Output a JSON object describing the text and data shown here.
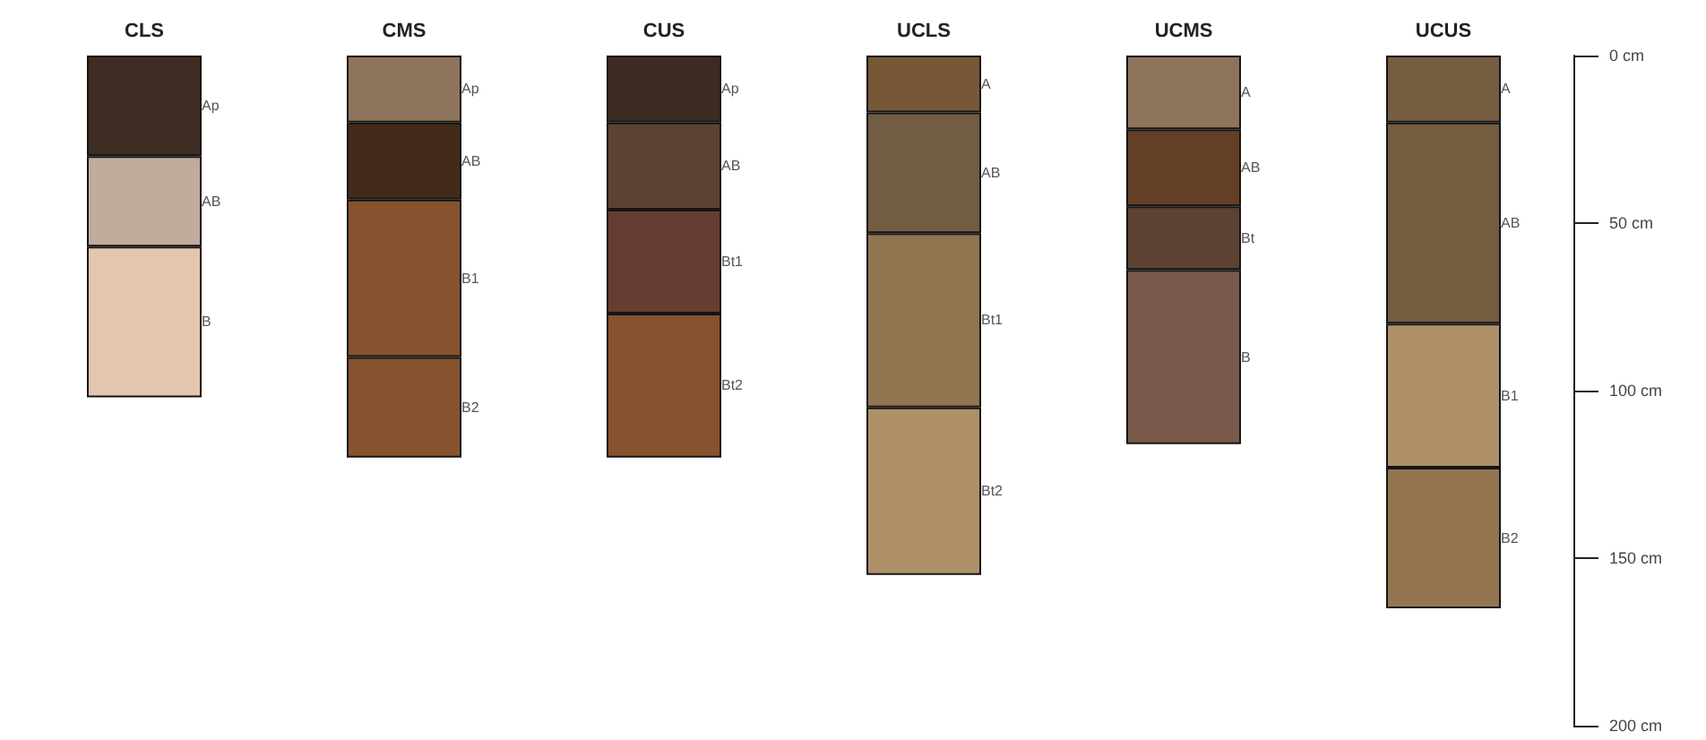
{
  "chart_data": {
    "type": "bar",
    "stacked": true,
    "categories": [
      "CLS",
      "CMS",
      "CUS",
      "UCLS",
      "UCMS",
      "UCUS"
    ],
    "series": [
      {
        "values": [
          30,
          20,
          20,
          17,
          22,
          20
        ],
        "colors": [
          "#3e2d22",
          "#8e745c",
          "#3d2c21",
          "#775836",
          "#8f745c",
          "#755d41"
        ],
        "value_labels": [
          "Ap",
          "Ap",
          "Ap",
          "A",
          "A",
          "A"
        ]
      },
      {
        "values": [
          27,
          23,
          26,
          36,
          23,
          60
        ],
        "colors": [
          "#c2aa9c",
          "#432a1b",
          "#5c4331",
          "#725c42",
          "#623f25",
          "#735c40"
        ],
        "value_labels": [
          "AB",
          "AB",
          "AB",
          "AB",
          "AB",
          "AB"
        ]
      },
      {
        "values": [
          45,
          47,
          31,
          52,
          19,
          43
        ],
        "colors": [
          "#e4c5ae",
          "#86532e",
          "#673c31",
          "#917450",
          "#5c4331",
          "#af9169"
        ],
        "value_labels": [
          "B",
          "B1",
          "Bt1",
          "Bt1",
          "Bt",
          "B1"
        ]
      },
      {
        "values": [
          null,
          30,
          43,
          50,
          52,
          42
        ],
        "colors": [
          null,
          "#86532e",
          "#86532e",
          "#ae9168",
          "#795a4a",
          "#937550"
        ],
        "value_labels": [
          null,
          "B2",
          "Bt2",
          "Bt2",
          "B",
          "B2"
        ]
      }
    ],
    "ylim": [
      200,
      0
    ],
    "yticks": [
      {
        "value": 0,
        "label": "0 cm"
      },
      {
        "value": 50,
        "label": "50 cm"
      },
      {
        "value": 100,
        "label": "100 cm"
      },
      {
        "value": 150,
        "label": "150 cm"
      },
      {
        "value": 200,
        "label": "200 cm"
      }
    ],
    "grid": false
  }
}
